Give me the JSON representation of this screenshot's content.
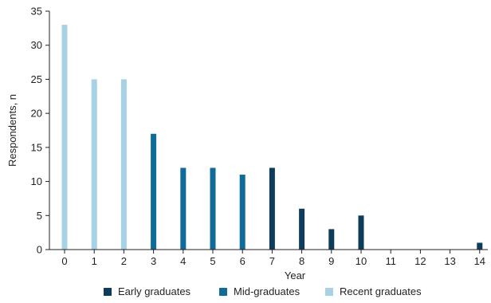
{
  "chart_data": {
    "type": "bar",
    "xlabel": "Year",
    "ylabel": "Respondents, n",
    "ylim": [
      0,
      35
    ],
    "yticks": [
      0,
      5,
      10,
      15,
      20,
      25,
      30,
      35
    ],
    "categories": [
      "0",
      "1",
      "2",
      "3",
      "4",
      "5",
      "6",
      "7",
      "8",
      "9",
      "10",
      "11",
      "12",
      "13",
      "14"
    ],
    "series": [
      {
        "name": "Early graduates",
        "color": "#0e3d5c",
        "values": [
          0,
          0,
          0,
          0,
          0,
          0,
          0,
          12,
          6,
          3,
          5,
          0,
          0,
          0,
          1
        ]
      },
      {
        "name": "Mid-graduates",
        "color": "#0f6b99",
        "values": [
          0,
          0,
          0,
          17,
          12,
          12,
          11,
          0,
          0,
          0,
          0,
          0,
          0,
          0,
          0
        ]
      },
      {
        "name": "Recent graduates",
        "color": "#a6d1e6",
        "values": [
          33,
          25,
          25,
          0,
          0,
          0,
          0,
          0,
          0,
          0,
          0,
          0,
          0,
          0,
          0
        ]
      }
    ],
    "grid": false,
    "legend_position": "bottom"
  }
}
